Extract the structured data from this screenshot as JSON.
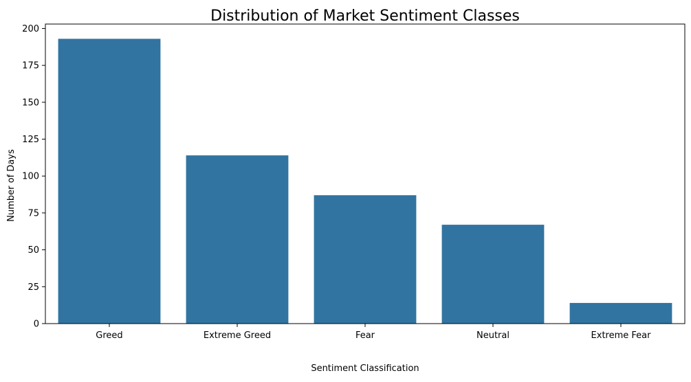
{
  "chart_data": {
    "type": "bar",
    "title": "Distribution of Market Sentiment Classes",
    "xlabel": "Sentiment Classification",
    "ylabel": "Number of Days",
    "categories": [
      "Greed",
      "Extreme Greed",
      "Fear",
      "Neutral",
      "Extreme Fear"
    ],
    "values": [
      193,
      114,
      87,
      67,
      14
    ],
    "ylim": [
      0,
      203
    ],
    "yticks": [
      0,
      25,
      50,
      75,
      100,
      125,
      150,
      175,
      200
    ],
    "grid": false,
    "legend": "none",
    "bar_color": "#3274a1"
  }
}
